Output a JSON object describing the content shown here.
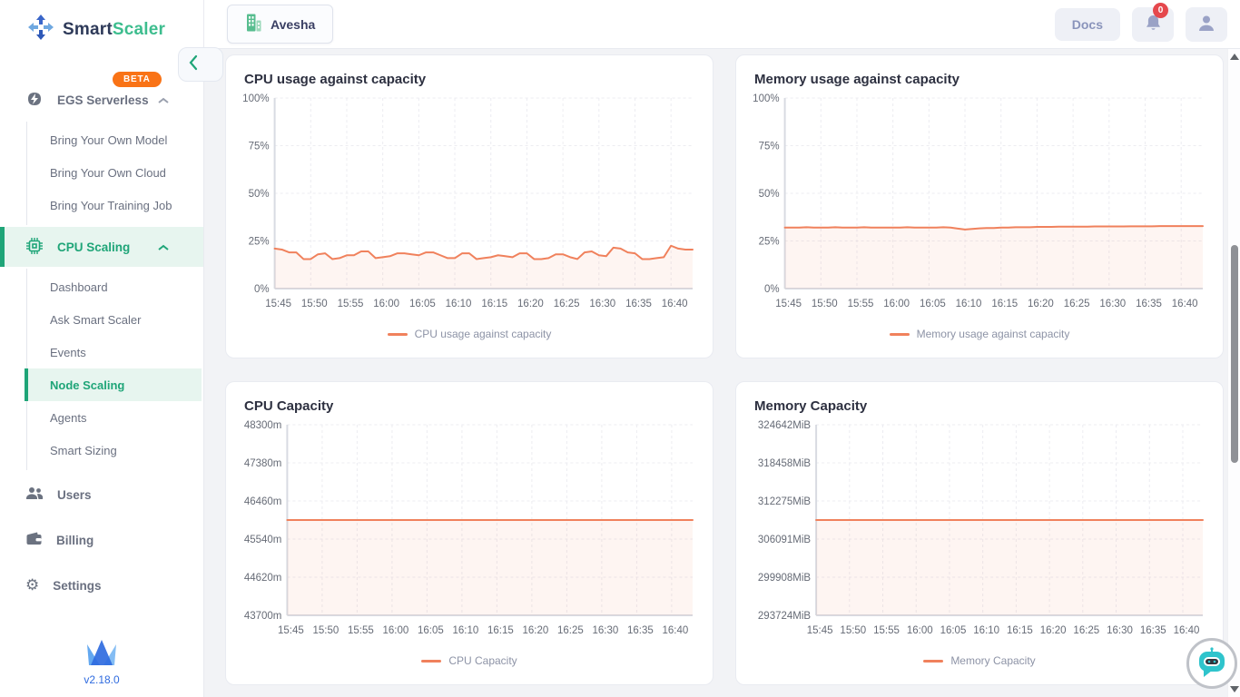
{
  "brand": {
    "name_primary": "Smart",
    "name_secondary": "Scaler",
    "version": "v2.18.0"
  },
  "header": {
    "org_name": "Avesha",
    "docs_label": "Docs",
    "notification_badge": "0"
  },
  "sidebar": {
    "sections": [
      {
        "label": "EGS Serverless",
        "badge": "BETA",
        "children": [
          "Bring Your Own Model",
          "Bring Your Own Cloud",
          "Bring Your Training Job"
        ]
      },
      {
        "label": "CPU Scaling",
        "children": [
          "Dashboard",
          "Ask Smart Scaler",
          "Events",
          "Node Scaling",
          "Agents",
          "Smart Sizing"
        ],
        "selected_child": "Node Scaling"
      },
      {
        "label": "Users"
      },
      {
        "label": "Billing"
      },
      {
        "label": "Settings"
      }
    ]
  },
  "colors": {
    "accent_green": "#1fa578",
    "accent_green_bg": "#e7f5ef",
    "chart_line": "#f0815c",
    "beta_badge": "#f97316",
    "notification_red": "#e5484d",
    "brand_navy": "#2e3a59",
    "brand_green": "#3dbd8e",
    "version_blue": "#2f6bdf"
  },
  "chart_data": [
    {
      "type": "line",
      "title": "CPU usage against capacity",
      "legend": "CPU usage against capacity",
      "x_ticks": [
        "15:45",
        "15:50",
        "15:55",
        "16:00",
        "16:05",
        "16:10",
        "16:15",
        "16:20",
        "16:25",
        "16:30",
        "16:35",
        "16:40"
      ],
      "tick_interval_minutes": 5,
      "x_total_minutes": 58,
      "ylim": [
        0,
        100
      ],
      "y_ticks": [
        0,
        25,
        50,
        75,
        100
      ],
      "y_suffix": "%",
      "grid": true,
      "legend_position": "bottom",
      "color": "#f0815c",
      "fill": "rgba(240,129,92,0.08)",
      "values": [
        21,
        20.5,
        19,
        19,
        15.5,
        15.5,
        18,
        18.5,
        15.5,
        16,
        17.5,
        17.5,
        19.5,
        19.5,
        16,
        16.5,
        17,
        18.5,
        18.5,
        18,
        17.5,
        19,
        19,
        17.5,
        16,
        16,
        18.5,
        18.5,
        15.5,
        16,
        16.5,
        17.5,
        17,
        16.5,
        18.5,
        18.5,
        15.5,
        15.5,
        16,
        18,
        18,
        16.5,
        15.5,
        19,
        19.5,
        17.5,
        17,
        21.5,
        21,
        19,
        18.5,
        15.5,
        15.5,
        16,
        16.5,
        22.5,
        21,
        20.5,
        20.5
      ]
    },
    {
      "type": "line",
      "title": "Memory usage against capacity",
      "legend": "Memory usage against capacity",
      "x_ticks": [
        "15:45",
        "15:50",
        "15:55",
        "16:00",
        "16:05",
        "16:10",
        "16:15",
        "16:20",
        "16:25",
        "16:30",
        "16:35",
        "16:40"
      ],
      "tick_interval_minutes": 5,
      "x_total_minutes": 58,
      "ylim": [
        0,
        100
      ],
      "y_ticks": [
        0,
        25,
        50,
        75,
        100
      ],
      "y_suffix": "%",
      "grid": true,
      "legend_position": "bottom",
      "color": "#f0815c",
      "fill": "rgba(240,129,92,0.08)",
      "values": [
        32,
        32,
        32,
        32.2,
        32,
        32,
        32,
        32.2,
        32,
        32,
        32,
        32.2,
        32,
        32,
        32,
        32,
        32,
        32.2,
        32,
        32,
        32,
        32,
        32.2,
        32,
        31.5,
        31,
        31.3,
        31.6,
        31.8,
        31.8,
        32,
        32,
        32.2,
        32.2,
        32.2,
        32.4,
        32.4,
        32.4,
        32.5,
        32.5,
        32.5,
        32.5,
        32.5,
        32.6,
        32.6,
        32.6,
        32.6,
        32.6,
        32.7,
        32.7,
        32.7,
        32.7,
        32.8,
        32.8,
        32.8,
        32.8,
        32.8,
        32.8,
        32.8
      ]
    },
    {
      "type": "line",
      "title": "CPU Capacity",
      "legend": "CPU Capacity",
      "x_ticks": [
        "15:45",
        "15:50",
        "15:55",
        "16:00",
        "16:05",
        "16:10",
        "16:15",
        "16:20",
        "16:25",
        "16:30",
        "16:35",
        "16:40"
      ],
      "tick_interval_minutes": 5,
      "x_total_minutes": 58,
      "ylim": [
        43700,
        48300
      ],
      "y_ticks": [
        43700,
        44620,
        45540,
        46460,
        47380,
        48300
      ],
      "y_suffix": "m",
      "grid": true,
      "legend_position": "bottom",
      "color": "#f0815c",
      "fill": "rgba(240,129,92,0.08)",
      "values": [
        46000,
        46000
      ]
    },
    {
      "type": "line",
      "title": "Memory Capacity",
      "legend": "Memory Capacity",
      "x_ticks": [
        "15:45",
        "15:50",
        "15:55",
        "16:00",
        "16:05",
        "16:10",
        "16:15",
        "16:20",
        "16:25",
        "16:30",
        "16:35",
        "16:40"
      ],
      "tick_interval_minutes": 5,
      "x_total_minutes": 58,
      "ylim": [
        293724,
        324642
      ],
      "y_ticks": [
        293724,
        299908,
        306091,
        312275,
        318458,
        324642
      ],
      "y_suffix": "MiB",
      "grid": true,
      "legend_position": "bottom",
      "color": "#f0815c",
      "fill": "rgba(240,129,92,0.08)",
      "values": [
        309183,
        309183
      ]
    }
  ]
}
